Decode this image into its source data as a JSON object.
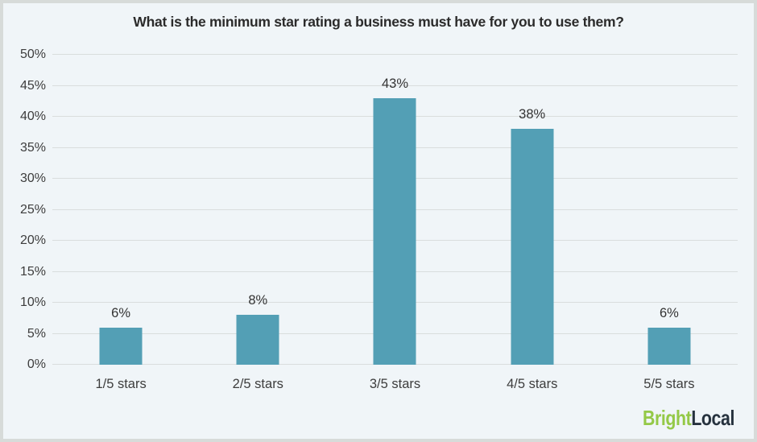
{
  "page": {
    "background_color": "#f0f5f8",
    "frame_border_color": "#d7dbd9",
    "gridline_color": "#d9dddd"
  },
  "chart_data": {
    "type": "bar",
    "title": "What is the minimum star rating a business must have for you to use them?",
    "categories": [
      "1/5 stars",
      "2/5 stars",
      "3/5 stars",
      "4/5 stars",
      "5/5 stars"
    ],
    "values": [
      6,
      8,
      43,
      38,
      6
    ],
    "data_labels": [
      "6%",
      "8%",
      "43%",
      "38%",
      "6%"
    ],
    "y_ticks": [
      "0%",
      "5%",
      "10%",
      "15%",
      "20%",
      "25%",
      "30%",
      "35%",
      "40%",
      "45%",
      "50%"
    ],
    "ylim": [
      0,
      50
    ],
    "xlabel": "",
    "ylabel": "",
    "grid": true,
    "legend": "none",
    "bar_color": "#539fb5"
  },
  "branding": {
    "logo_part1": "Bright",
    "logo_part2": "Local",
    "logo_color1": "#94c947",
    "logo_color2": "#26323e"
  }
}
